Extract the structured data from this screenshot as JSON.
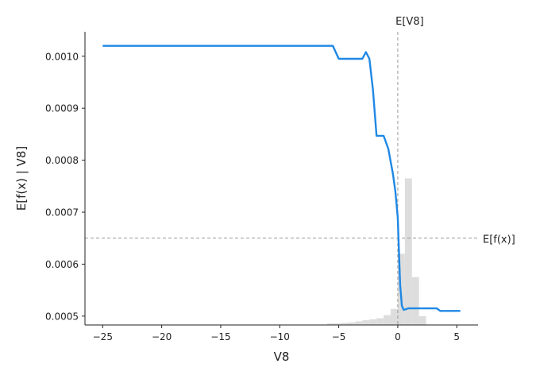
{
  "chart_data": {
    "type": "line",
    "title": "",
    "xlabel": "V8",
    "ylabel": "E[f(x) | V8]",
    "xlim": [
      -26.5,
      6.8
    ],
    "ylim": [
      0.000483,
      0.001047
    ],
    "x_ticks": [
      -25,
      -20,
      -15,
      -10,
      -5,
      0,
      5
    ],
    "x_tick_labels": [
      "−25",
      "−20",
      "−15",
      "−10",
      "−5",
      "0",
      "5"
    ],
    "y_ticks": [
      0.0005,
      0.0006,
      0.0007,
      0.0008,
      0.0009,
      0.001
    ],
    "y_tick_labels": [
      "0.0005",
      "0.0006",
      "0.0007",
      "0.0008",
      "0.0009",
      "0.0010"
    ],
    "grid": false,
    "colors": {
      "line": "#1f88e5",
      "histogram": "#dddddd",
      "reference": "#999999",
      "axis": "#222222"
    },
    "series": [
      {
        "x": [
          -25,
          -5.5,
          -5.0,
          -3.0,
          -2.7,
          -2.4,
          -2.1,
          -1.8,
          -1.2,
          -0.8,
          -0.4,
          -0.2,
          0.0,
          0.1,
          0.2,
          0.35,
          0.5,
          0.9,
          1.5,
          2.5,
          3.3,
          3.6,
          5.3
        ],
        "y": [
          0.00102,
          0.00102,
          0.000995,
          0.000995,
          0.001008,
          0.000995,
          0.000935,
          0.000847,
          0.000847,
          0.000822,
          0.000772,
          0.00074,
          0.00069,
          0.000625,
          0.00056,
          0.00052,
          0.000512,
          0.000515,
          0.000515,
          0.000515,
          0.000515,
          0.00051,
          0.00051
        ]
      }
    ],
    "reference_lines": [
      {
        "axis": "x",
        "value": 0.0,
        "label": "E[V8]"
      },
      {
        "axis": "y",
        "value": 0.00065,
        "label": "E[f(x)]"
      }
    ],
    "histogram": {
      "bin_edges": [
        -6,
        -5.4,
        -4.8,
        -4.2,
        -3.6,
        -3.0,
        -2.4,
        -1.8,
        -1.2,
        -0.6,
        0.0,
        0.6,
        1.2,
        1.8,
        2.4
      ],
      "heights": [
        0.000486,
        0.000486,
        0.000487,
        0.000488,
        0.00049,
        0.000492,
        0.000494,
        0.000496,
        0.000502,
        0.000514,
        0.00062,
        0.000765,
        0.000575,
        0.0005,
        0.000488
      ]
    }
  }
}
